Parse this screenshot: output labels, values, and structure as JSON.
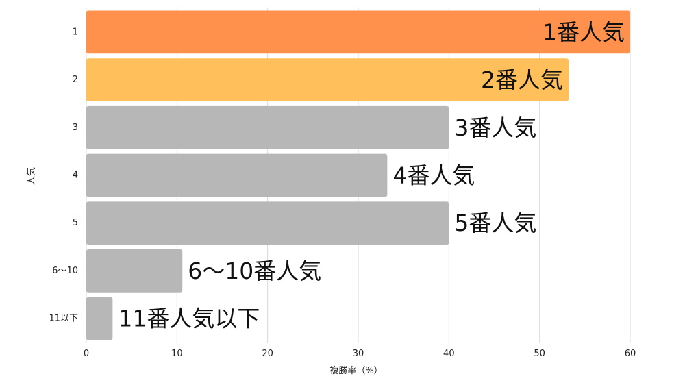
{
  "chart_data": {
    "type": "bar",
    "orientation": "horizontal",
    "xlabel": "複勝率（%）",
    "ylabel": "人気",
    "xlim": [
      0,
      60
    ],
    "xticks": [
      0,
      10,
      20,
      30,
      40,
      50,
      60
    ],
    "grid": true,
    "categories": [
      "1",
      "2",
      "3",
      "4",
      "5",
      "6〜10",
      "11以下"
    ],
    "values": [
      60.0,
      53.2,
      40.0,
      33.2,
      40.0,
      10.6,
      2.9
    ],
    "bar_labels": [
      "1番人気",
      "2番人気",
      "3番人気",
      "4番人気",
      "5番人気",
      "6〜10番人気",
      "11番人気以下"
    ],
    "label_placement": [
      "inside",
      "inside",
      "outside",
      "outside",
      "outside",
      "outside",
      "outside"
    ],
    "colors": [
      "#FF914D",
      "#FFBF5A",
      "#B7B7B7",
      "#B7B7B7",
      "#B7B7B7",
      "#B7B7B7",
      "#B7B7B7"
    ],
    "grid_color": "#D9D9D9"
  }
}
